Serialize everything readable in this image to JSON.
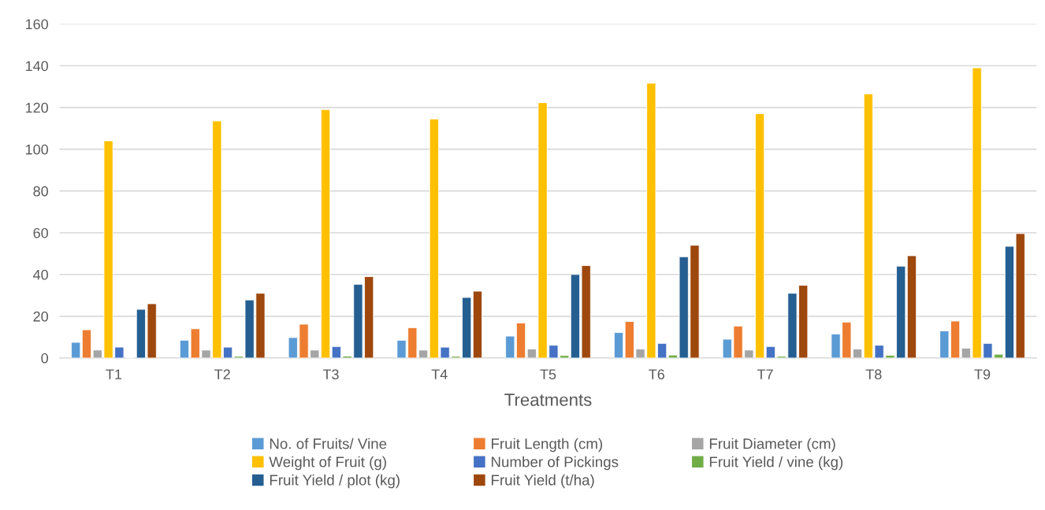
{
  "chart_data": {
    "type": "bar",
    "xlabel": "Treatments",
    "categories": [
      "T1",
      "T2",
      "T3",
      "T4",
      "T5",
      "T6",
      "T7",
      "T8",
      "T9"
    ],
    "series": [
      {
        "name": "No. of Fruits/ Vine",
        "color": "#5b9bd5",
        "values": [
          7.5,
          8.5,
          9.8,
          8.5,
          10.5,
          12.2,
          9,
          11.5,
          13
        ]
      },
      {
        "name": "Fruit Length (cm)",
        "color": "#ed7d31",
        "values": [
          13.5,
          14,
          16.2,
          14.5,
          16.8,
          17.5,
          15.3,
          17.2,
          17.7
        ]
      },
      {
        "name": "Fruit Diameter (cm)",
        "color": "#a5a5a5",
        "values": [
          3.8,
          3.8,
          3.8,
          3.8,
          4.3,
          4.3,
          3.8,
          4.3,
          4.7
        ]
      },
      {
        "name": "Weight of Fruit (g)",
        "color": "#ffc000",
        "values": [
          104,
          113.5,
          119,
          114.5,
          122.3,
          131.6,
          117,
          126.5,
          139
        ]
      },
      {
        "name": "Number of Pickings",
        "color": "#4472c4",
        "values": [
          5.2,
          5.2,
          5.5,
          5.2,
          6.1,
          7,
          5.5,
          6.1,
          7
        ]
      },
      {
        "name": "Fruit Yield / vine (kg)",
        "color": "#70ad47",
        "values": [
          null,
          0.8,
          0.9,
          0.8,
          1.2,
          1.4,
          0.8,
          1.3,
          1.8
        ]
      },
      {
        "name": "Fruit Yield / plot (kg)",
        "color": "#255e91",
        "values": [
          23.3,
          27.8,
          35.3,
          29,
          40,
          48.5,
          31,
          44,
          53.5
        ]
      },
      {
        "name": "Fruit Yield (t/ha)",
        "color": "#9e480e",
        "values": [
          26,
          31,
          39,
          32,
          44.3,
          54,
          34.8,
          49,
          59.6
        ]
      }
    ],
    "ylim": [
      0,
      160
    ],
    "yticks": [
      0,
      20,
      40,
      60,
      80,
      100,
      120,
      140,
      160
    ],
    "grid": "y",
    "legend": "bottom"
  }
}
